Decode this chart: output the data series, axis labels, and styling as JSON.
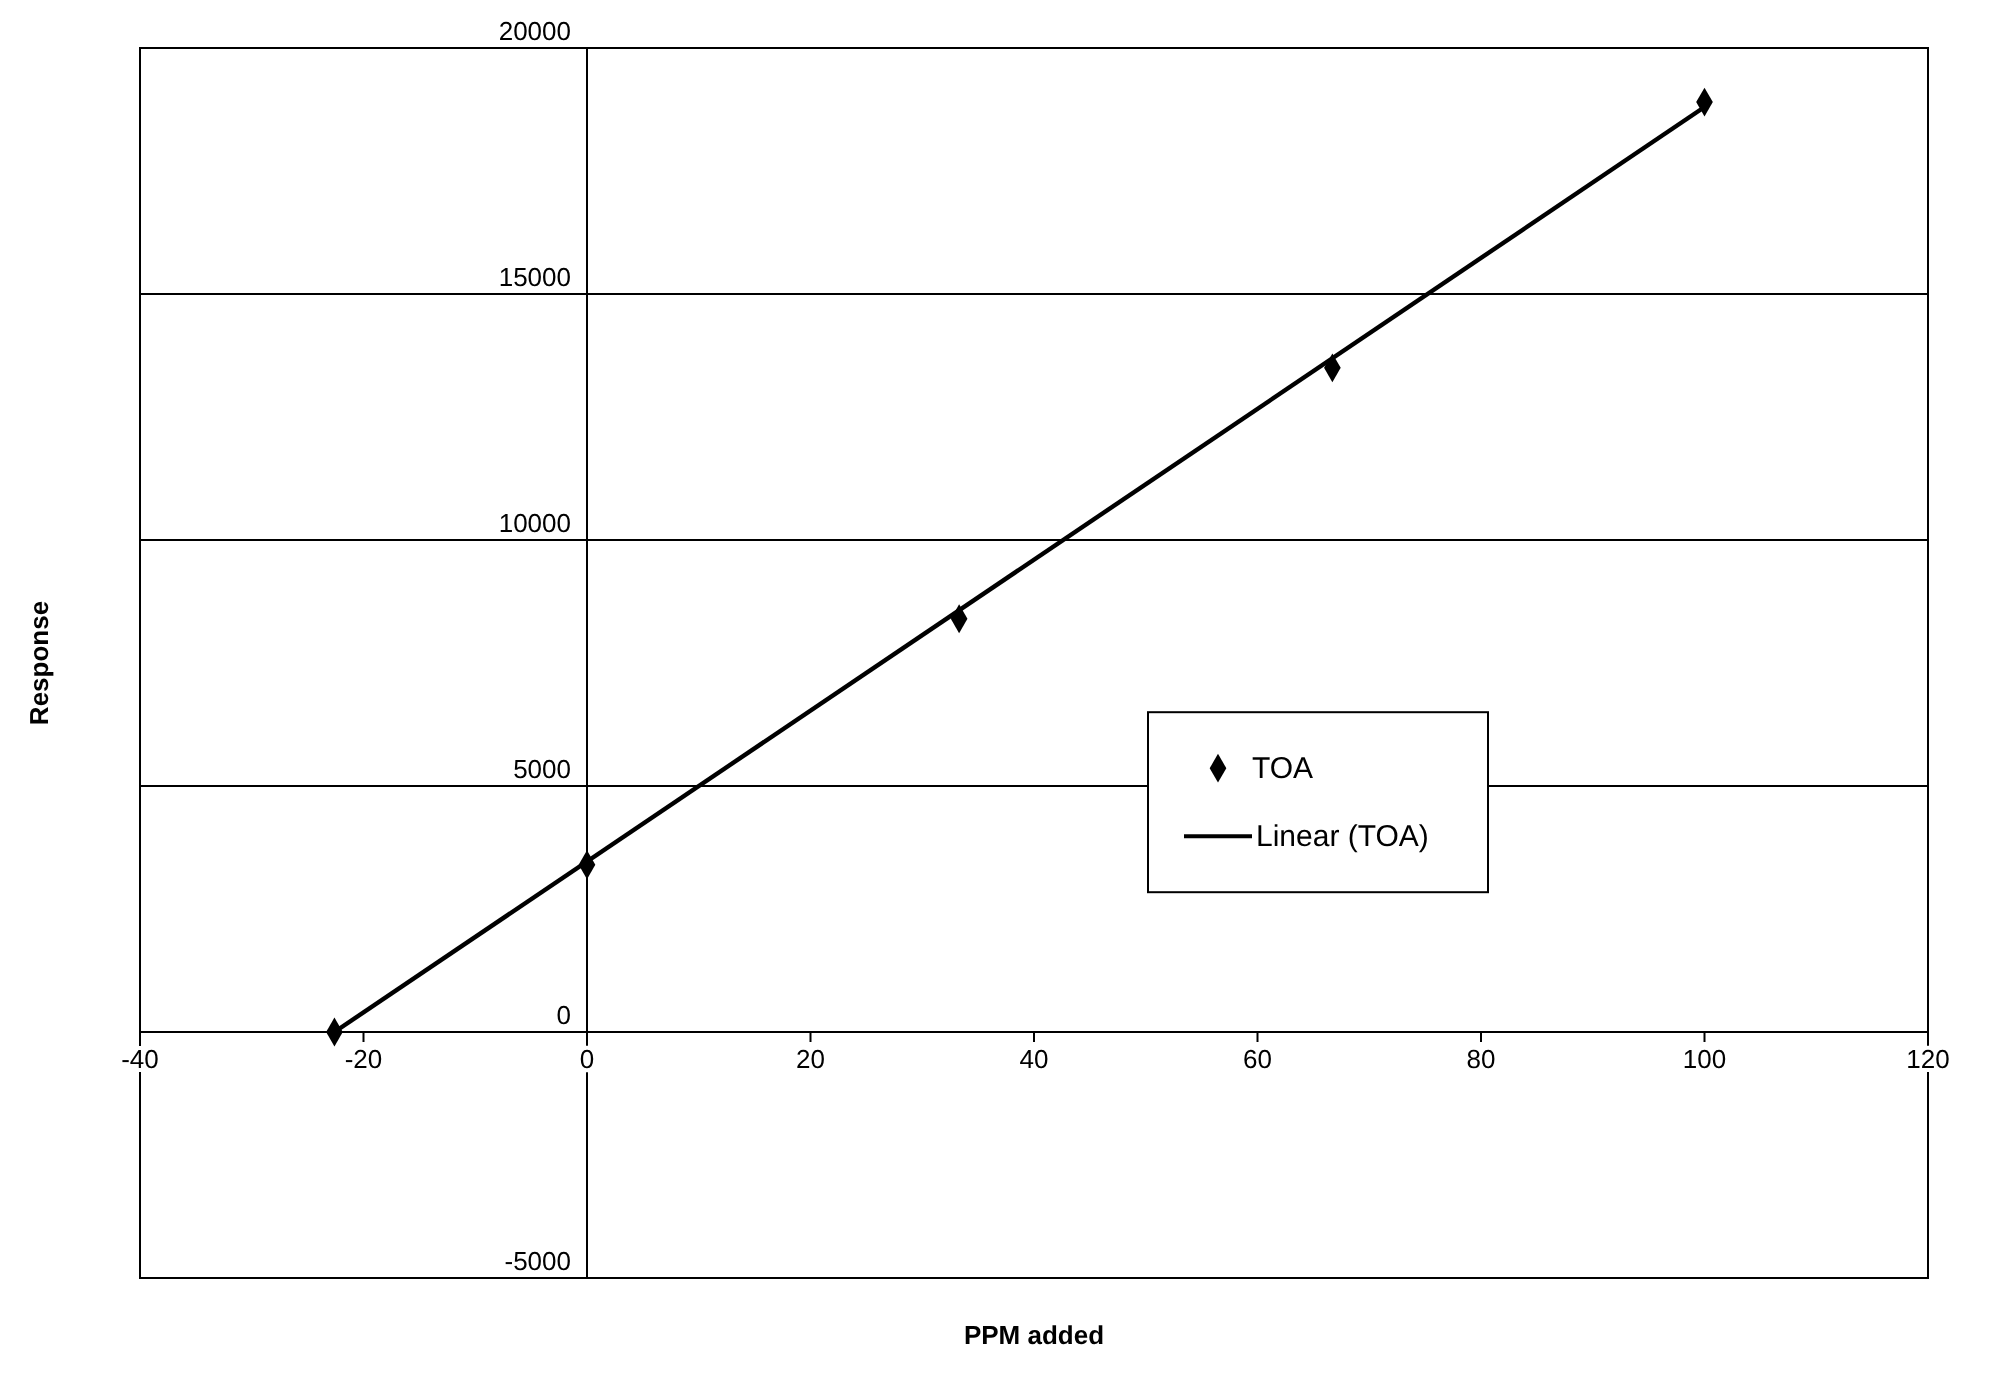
{
  "chart_data": {
    "type": "scatter",
    "xlabel": "PPM added",
    "ylabel": "Response",
    "xlim": [
      -40,
      120
    ],
    "xticks": [
      -40,
      -20,
      0,
      20,
      40,
      60,
      80,
      100,
      120
    ],
    "ylim": [
      -5000,
      20000
    ],
    "yticks": [
      -5000,
      0,
      5000,
      10000,
      15000,
      20000
    ],
    "grid": "y",
    "legend": "right",
    "marker": "diamond",
    "series": [
      {
        "name": "TOA",
        "color": "#000000",
        "x": [
          -22.6,
          0,
          33.3,
          66.7,
          100
        ],
        "values": [
          0,
          3400,
          8400,
          13500,
          18900
        ]
      },
      {
        "name": "Linear (TOA)",
        "type": "line",
        "color": "#000000",
        "x": [
          -22.6,
          100
        ],
        "values": [
          0,
          18800
        ],
        "marker": "none",
        "line_style": "solid"
      }
    ]
  }
}
